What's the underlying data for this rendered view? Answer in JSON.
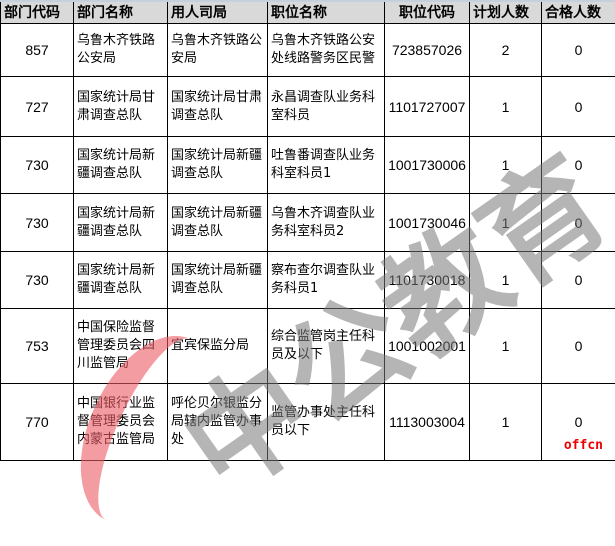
{
  "headers": [
    "部门代码",
    "部门名称",
    "用人司局",
    "职位名称",
    "职位代码",
    "计划人数",
    "合格人数"
  ],
  "rows": [
    {
      "dept_code": "857",
      "dept_name": "乌鲁木齐铁路公安局",
      "bureau": "乌鲁木齐铁路公安局",
      "position": "乌鲁木齐铁路公安处线路警务区民警",
      "pos_code": "723857026",
      "planned": "2",
      "qualified": "0"
    },
    {
      "dept_code": "727",
      "dept_name": "国家统计局甘肃调查总队",
      "bureau": "国家统计局甘肃调查总队",
      "position": "永昌调查队业务科室科员",
      "pos_code": "1101727007",
      "planned": "1",
      "qualified": "0"
    },
    {
      "dept_code": "730",
      "dept_name": "国家统计局新疆调查总队",
      "bureau": "国家统计局新疆调查总队",
      "position": "吐鲁番调查队业务科室科员1",
      "pos_code": "1001730006",
      "planned": "1",
      "qualified": "0"
    },
    {
      "dept_code": "730",
      "dept_name": "国家统计局新疆调查总队",
      "bureau": "国家统计局新疆调查总队",
      "position": "乌鲁木齐调查队业务科室科员2",
      "pos_code": "1001730046",
      "planned": "1",
      "qualified": "0"
    },
    {
      "dept_code": "730",
      "dept_name": "国家统计局新疆调查总队",
      "bureau": "国家统计局新疆调查总队",
      "position": "察布查尔调查队业务科员1",
      "pos_code": "1101730018",
      "planned": "1",
      "qualified": "0"
    },
    {
      "dept_code": "753",
      "dept_name": "中国保险监督管理委员会四川监管局",
      "bureau": "宜宾保监分局",
      "position": "综合监管岗主任科员及以下",
      "pos_code": "1001002001",
      "planned": "1",
      "qualified": "0"
    },
    {
      "dept_code": "770",
      "dept_name": "中国银行业监督管理委员会内蒙古监管局",
      "bureau": "呼伦贝尔银监分局辖内监管办事处",
      "position": "监管办事处主任科员以下",
      "pos_code": "1113003004",
      "planned": "1",
      "qualified": "0"
    }
  ],
  "watermark": "中公教育",
  "logo": "offcn"
}
